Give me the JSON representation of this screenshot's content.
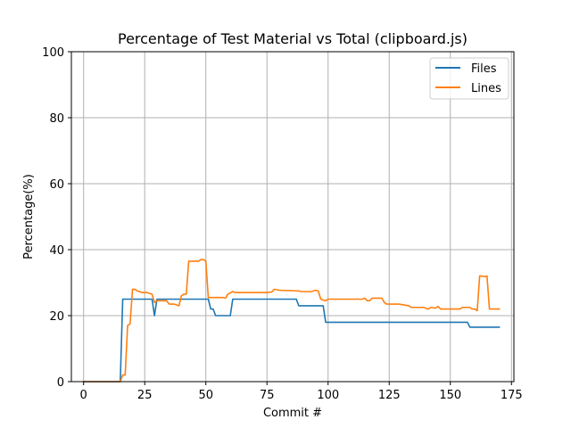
{
  "chart_data": {
    "type": "line",
    "title": "Percentage of Test Material vs Total (clipboard.js)",
    "xlabel": "Commit #",
    "ylabel": "Percentage(%)",
    "xlim": [
      -5,
      176
    ],
    "ylim": [
      0,
      100
    ],
    "xticks": [
      0,
      25,
      50,
      75,
      100,
      125,
      150,
      175
    ],
    "yticks": [
      0,
      20,
      40,
      60,
      80,
      100
    ],
    "grid": true,
    "legend_position": "top-right",
    "series": [
      {
        "name": "Files",
        "color": "#1f77b4",
        "points": [
          [
            0,
            0
          ],
          [
            15,
            0
          ],
          [
            16,
            25
          ],
          [
            28,
            25
          ],
          [
            29,
            20
          ],
          [
            30,
            25
          ],
          [
            51,
            25
          ],
          [
            52,
            22
          ],
          [
            53,
            22
          ],
          [
            54,
            20
          ],
          [
            60,
            20
          ],
          [
            61,
            25
          ],
          [
            87,
            25
          ],
          [
            88,
            23
          ],
          [
            98,
            23
          ],
          [
            99,
            18
          ],
          [
            157,
            18
          ],
          [
            158,
            16.5
          ],
          [
            170,
            16.5
          ]
        ]
      },
      {
        "name": "Lines",
        "color": "#ff7f0e",
        "points": [
          [
            0,
            0
          ],
          [
            15,
            0
          ],
          [
            16,
            2
          ],
          [
            17,
            2
          ],
          [
            18,
            17
          ],
          [
            19,
            17.5
          ],
          [
            20,
            28
          ],
          [
            21,
            28
          ],
          [
            22,
            27.5
          ],
          [
            24,
            27
          ],
          [
            26,
            27
          ],
          [
            28,
            26.5
          ],
          [
            29,
            24
          ],
          [
            30,
            24.5
          ],
          [
            34,
            24.5
          ],
          [
            35,
            23.5
          ],
          [
            37,
            23.5
          ],
          [
            39,
            23
          ],
          [
            40,
            26
          ],
          [
            41,
            26.5
          ],
          [
            42,
            26.5
          ],
          [
            43,
            36.5
          ],
          [
            47,
            36.5
          ],
          [
            48,
            37
          ],
          [
            49,
            37
          ],
          [
            50,
            36.5
          ],
          [
            51,
            25.5
          ],
          [
            57,
            25.5
          ],
          [
            58,
            25.3
          ],
          [
            59,
            26.5
          ],
          [
            61,
            27.3
          ],
          [
            62,
            27
          ],
          [
            75,
            27
          ],
          [
            77,
            27.2
          ],
          [
            78,
            28
          ],
          [
            80,
            27.7
          ],
          [
            88,
            27.5
          ],
          [
            89,
            27.3
          ],
          [
            93,
            27.3
          ],
          [
            95,
            27.7
          ],
          [
            96,
            27.5
          ],
          [
            97,
            25
          ],
          [
            99,
            24.5
          ],
          [
            100,
            25
          ],
          [
            114,
            25
          ],
          [
            115,
            25.3
          ],
          [
            116,
            24.5
          ],
          [
            117,
            24.5
          ],
          [
            118,
            25.3
          ],
          [
            122,
            25.3
          ],
          [
            123,
            24
          ],
          [
            124,
            23.5
          ],
          [
            129,
            23.5
          ],
          [
            133,
            23
          ],
          [
            134,
            22.5
          ],
          [
            139,
            22.5
          ],
          [
            141,
            22
          ],
          [
            142,
            22.5
          ],
          [
            144,
            22.3
          ],
          [
            145,
            22.8
          ],
          [
            146,
            22
          ],
          [
            152,
            22
          ],
          [
            154,
            22
          ],
          [
            155,
            22.5
          ],
          [
            158,
            22.5
          ],
          [
            159,
            22
          ],
          [
            160,
            22
          ],
          [
            161,
            21.5
          ],
          [
            162,
            32
          ],
          [
            163,
            32
          ],
          [
            164,
            31.8
          ],
          [
            165,
            32
          ],
          [
            166,
            22
          ],
          [
            170,
            22
          ]
        ]
      }
    ]
  }
}
